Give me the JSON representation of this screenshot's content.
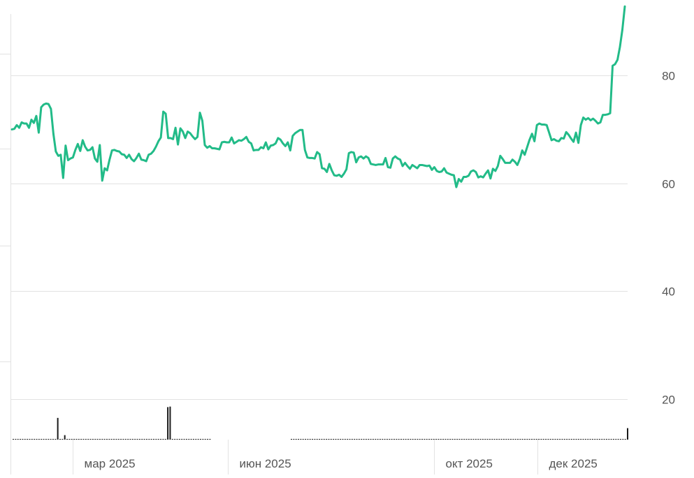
{
  "chart_data": {
    "type": "line",
    "title": "",
    "xlabel": "",
    "ylabel": "",
    "x_tick_labels": [
      "мар 2025",
      "июн 2025",
      "окт 2025",
      "дек 2025"
    ],
    "y_tick_labels": [
      "20",
      "40",
      "60",
      "80"
    ],
    "ylim": [
      6,
      94
    ],
    "xlim": [
      "2025-01-24",
      "2026-01-23"
    ],
    "grid": true,
    "colors": {
      "line": "#22bb88",
      "volume": "#1a1a1a",
      "grid": "#e2e2e2",
      "tick_text": "#555555"
    },
    "series": [
      {
        "values": [
          70.0,
          70.1,
          70.8,
          70.3,
          71.3,
          71.1,
          71.1,
          70.3,
          71.8,
          71.2,
          72.5,
          69.4,
          74.1,
          74.6,
          74.8,
          74.7,
          73.8,
          69.2,
          65.9,
          65.1,
          65.3,
          61.0,
          67.0,
          64.3,
          64.6,
          64.8,
          66.2,
          67.3,
          66.0,
          68.0,
          66.8,
          66.1,
          66.2,
          66.7,
          64.6,
          64.0,
          67.1,
          60.5,
          62.8,
          62.4,
          64.4,
          66.1,
          66.2,
          66.0,
          65.9,
          65.4,
          65.3,
          64.7,
          65.3,
          64.5,
          64.1,
          64.7,
          65.5,
          64.4,
          64.3,
          64.1,
          65.3,
          65.5,
          66.0,
          66.8,
          67.8,
          68.5,
          73.3,
          72.9,
          68.4,
          68.4,
          68.2,
          70.3,
          67.2,
          70.2,
          69.6,
          68.4,
          69.6,
          69.3,
          68.7,
          68.2,
          68.6,
          73.1,
          71.6,
          67.1,
          66.6,
          66.9,
          66.5,
          66.5,
          66.4,
          66.3,
          67.6,
          67.7,
          67.6,
          67.6,
          68.5,
          67.4,
          67.7,
          68.0,
          67.9,
          68.2,
          68.6,
          67.7,
          67.4,
          66.1,
          66.2,
          66.2,
          66.7,
          66.5,
          67.6,
          66.3,
          67.0,
          67.1,
          67.4,
          68.4,
          68.1,
          67.4,
          66.9,
          67.6,
          66.1,
          68.8,
          69.3,
          69.6,
          69.9,
          69.9,
          66.2,
          64.8,
          64.7,
          64.7,
          64.6,
          65.8,
          65.4,
          62.8,
          62.7,
          62.1,
          63.6,
          62.4,
          61.5,
          61.4,
          61.6,
          61.2,
          61.8,
          62.6,
          65.6,
          65.8,
          65.7,
          63.9,
          64.8,
          65.0,
          64.6,
          65.0,
          64.7,
          63.6,
          63.5,
          63.4,
          63.5,
          63.5,
          63.5,
          64.7,
          63.0,
          62.9,
          64.6,
          65.0,
          64.6,
          64.4,
          63.2,
          63.8,
          63.2,
          62.7,
          63.4,
          63.1,
          62.8,
          63.4,
          63.4,
          63.3,
          63.2,
          63.3,
          62.5,
          63.0,
          62.3,
          62.1,
          62.2,
          62.8,
          62.0,
          61.8,
          61.6,
          61.5,
          59.3,
          60.8,
          60.3,
          61.2,
          61.2,
          61.4,
          62.2,
          62.4,
          62.1,
          61.1,
          61.3,
          61.1,
          61.8,
          62.4,
          60.9,
          62.7,
          62.3,
          63.2,
          65.1,
          64.5,
          63.8,
          63.8,
          63.8,
          64.4,
          64.0,
          63.4,
          64.5,
          66.1,
          65.3,
          66.7,
          68.1,
          69.2,
          67.8,
          70.8,
          71.1,
          70.9,
          70.9,
          70.8,
          69.4,
          68.0,
          68.2,
          67.9,
          67.8,
          68.4,
          68.3,
          69.5,
          69.0,
          68.3,
          67.7,
          69.4,
          67.5,
          70.8,
          72.2,
          71.8,
          72.1,
          71.7,
          72.0,
          71.6,
          71.1,
          71.3,
          72.7,
          72.7,
          72.8,
          73.0,
          81.8,
          82.1,
          82.9,
          85.3,
          88.5,
          92.8
        ]
      }
    ],
    "volume": [
      7.6,
      7.9,
      8.1,
      7.6,
      8.3,
      8.2,
      8.0,
      8.6,
      7.7,
      8.1,
      8.9,
      7.4,
      7.3,
      7.9,
      7.7,
      7.3,
      6.9,
      7.5,
      11.8,
      16.5,
      11.8,
      8.1,
      13.3,
      11.4,
      9.7,
      8.6,
      9.2,
      8.9,
      8.2,
      9.1,
      8.8,
      9.0,
      8.8,
      8.7,
      8.9,
      10.9,
      8.7,
      8.8,
      9.5,
      9.1,
      8.6,
      9.1,
      8.6,
      8.1,
      8.5,
      7.9,
      9.2,
      9.7,
      8.6,
      8.1,
      9.1,
      10.1,
      9.5,
      8.9,
      8.5,
      9.1,
      8.8,
      9.9,
      8.7,
      8.2,
      8.7,
      8.5,
      8.9,
      9.3,
      9.9,
      9.6,
      18.5,
      18.6,
      7.5,
      10.4,
      12.0,
      10.3,
      9.3,
      8.9,
      9.7,
      10.3,
      9.5,
      10.2,
      9.7,
      8.8,
      9.4,
      9.2,
      8.4,
      9.2,
      8.0,
      6.4,
      6.6,
      6.6,
      6.5,
      6.4,
      6.5,
      6.4,
      6.4,
      6.4,
      6.4,
      6.5,
      6.4,
      6.4,
      6.3,
      6.3,
      6.4,
      6.5,
      6.4,
      6.4,
      6.4,
      6.4,
      6.4,
      6.3,
      6.4,
      6.4,
      6.4,
      6.4,
      6.3,
      6.4,
      6.4,
      6.4,
      6.3,
      6.4,
      6.4,
      6.3,
      6.5,
      6.6,
      6.4,
      6.3,
      6.6,
      6.3,
      6.2,
      6.3,
      6.4,
      6.7,
      6.6,
      6.3,
      6.4,
      6.3,
      6.2,
      6.6,
      6.5,
      6.5,
      6.5,
      6.6,
      6.6,
      6.4,
      6.6,
      6.5,
      6.3,
      6.3,
      6.4,
      6.3,
      6.4,
      6.5,
      6.5,
      6.3,
      6.4,
      6.3,
      6.2,
      6.3,
      6.3,
      6.2,
      6.3,
      6.3,
      6.3,
      6.4,
      6.2,
      6.3,
      6.3,
      6.4,
      6.3,
      6.5,
      6.5,
      6.3,
      6.3,
      6.3,
      6.2,
      6.3,
      6.4,
      6.4,
      6.3,
      6.5,
      6.6,
      6.4,
      6.5,
      6.6,
      6.8,
      6.4,
      7.5,
      6.9,
      6.6,
      6.5,
      6.5,
      6.5,
      6.6,
      6.6,
      6.6,
      6.6,
      6.6,
      6.6,
      6.6,
      6.7,
      6.7,
      6.8,
      6.7,
      6.5,
      6.7,
      6.5,
      6.6,
      6.5,
      6.6,
      6.7,
      6.6,
      6.5,
      6.6,
      6.6,
      7.0,
      6.5,
      6.7,
      6.8,
      6.6,
      6.9,
      6.7,
      6.4,
      6.6,
      7.6,
      7.2,
      6.5,
      6.7,
      6.8,
      9.3,
      10.1,
      10.3,
      14.6
    ]
  }
}
